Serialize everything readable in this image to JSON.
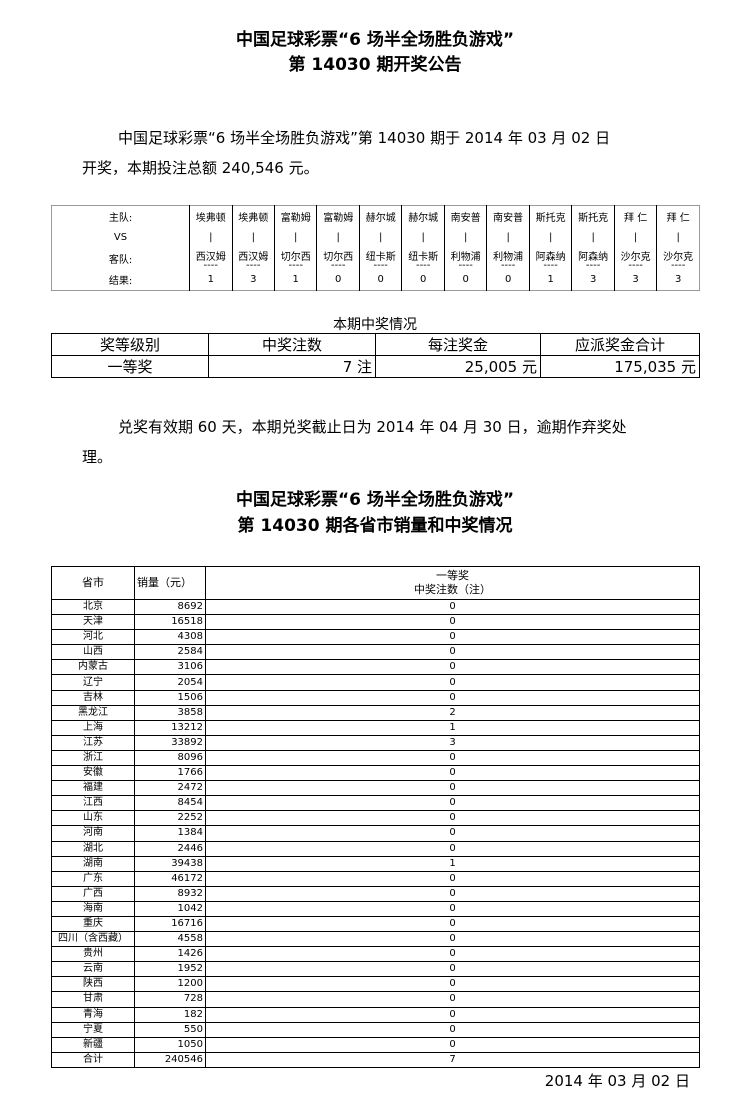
{
  "header": {
    "title1": "中国足球彩票“6 场半全场胜负游戏”",
    "title2": "第 14030 期开奖公告"
  },
  "intro": {
    "line1": "中国足球彩票“6 场半全场胜负游戏”第 14030 期于 2014 年 03 月 02 日",
    "line2": "开奖，本期投注总额 240,546 元。"
  },
  "match": {
    "labels": {
      "home": "主队:",
      "vs": "VS",
      "away": "客队:",
      "result": "结果:"
    },
    "home": [
      "埃弗顿",
      "埃弗顿",
      "富勒姆",
      "富勒姆",
      "赫尔城",
      "赫尔城",
      "南安普",
      "南安普",
      "斯托克",
      "斯托克",
      "拜 仁",
      "拜 仁"
    ],
    "away": [
      "西汉姆",
      "西汉姆",
      "切尔西",
      "切尔西",
      "纽卡斯",
      "纽卡斯",
      "利物浦",
      "利物浦",
      "阿森纳",
      "阿森纳",
      "沙尔克",
      "沙尔克"
    ],
    "results": [
      "1",
      "3",
      "1",
      "0",
      "0",
      "0",
      "0",
      "0",
      "1",
      "3",
      "3",
      "3"
    ],
    "sep": "|",
    "dash": "----"
  },
  "prize": {
    "title": "本期中奖情况",
    "headers": [
      "奖等级别",
      "中奖注数",
      "每注奖金",
      "应派奖金合计"
    ],
    "row": [
      "一等奖",
      "7 注",
      "25,005 元",
      "175,035 元"
    ]
  },
  "notice": {
    "line1": "兑奖有效期 60 天，本期兑奖截止日为 2014 年 04 月 30 日，逾期作弃奖处",
    "line2": "理。"
  },
  "section2": {
    "title1": "中国足球彩票“6 场半全场胜负游戏”",
    "title2": "第 14030 期各省市销量和中奖情况"
  },
  "province": {
    "headers": {
      "name": "省市",
      "sales": "销量（元）",
      "prize_a": "一等奖",
      "prize_b": "中奖注数（注）"
    },
    "rows": [
      [
        "北京",
        "8692",
        "0"
      ],
      [
        "天津",
        "16518",
        "0"
      ],
      [
        "河北",
        "4308",
        "0"
      ],
      [
        "山西",
        "2584",
        "0"
      ],
      [
        "内蒙古",
        "3106",
        "0"
      ],
      [
        "辽宁",
        "2054",
        "0"
      ],
      [
        "吉林",
        "1506",
        "0"
      ],
      [
        "黑龙江",
        "3858",
        "2"
      ],
      [
        "上海",
        "13212",
        "1"
      ],
      [
        "江苏",
        "33892",
        "3"
      ],
      [
        "浙江",
        "8096",
        "0"
      ],
      [
        "安徽",
        "1766",
        "0"
      ],
      [
        "福建",
        "2472",
        "0"
      ],
      [
        "江西",
        "8454",
        "0"
      ],
      [
        "山东",
        "2252",
        "0"
      ],
      [
        "河南",
        "1384",
        "0"
      ],
      [
        "湖北",
        "2446",
        "0"
      ],
      [
        "湖南",
        "39438",
        "1"
      ],
      [
        "广东",
        "46172",
        "0"
      ],
      [
        "广西",
        "8932",
        "0"
      ],
      [
        "海南",
        "1042",
        "0"
      ],
      [
        "重庆",
        "16716",
        "0"
      ],
      [
        "四川（含西藏）",
        "4558",
        "0"
      ],
      [
        "贵州",
        "1426",
        "0"
      ],
      [
        "云南",
        "1952",
        "0"
      ],
      [
        "陕西",
        "1200",
        "0"
      ],
      [
        "甘肃",
        "728",
        "0"
      ],
      [
        "青海",
        "182",
        "0"
      ],
      [
        "宁夏",
        "550",
        "0"
      ],
      [
        "新疆",
        "1050",
        "0"
      ],
      [
        "合计",
        "240546",
        "7"
      ]
    ]
  },
  "footer": {
    "date": "2014 年 03 月 02 日"
  }
}
